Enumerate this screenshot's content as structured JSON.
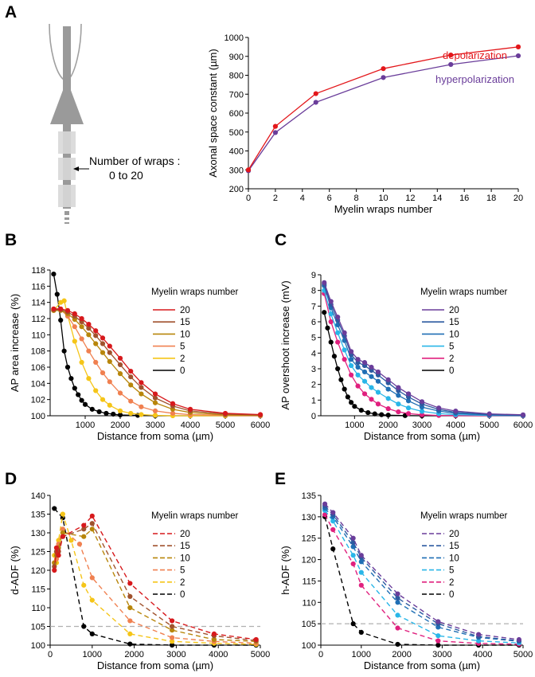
{
  "panel_letters": [
    "A",
    "B",
    "C",
    "D",
    "E"
  ],
  "schematic": {
    "label_line1": "Number of wraps :",
    "label_line2": "0 to 20"
  },
  "colors": {
    "w20": "#d7191c",
    "w15": "#a0522d",
    "w10": "#b8860b",
    "w5": "#f08050",
    "w2": "#f5c518",
    "w0": "#000000",
    "h20": "#6a3d9a",
    "h15": "#2c5aa0",
    "h10": "#1f6fb5",
    "h5": "#29b6e8",
    "h2": "#e0207e",
    "h0": "#000000",
    "depol": "#e3171b",
    "hyper": "#6a3d9a",
    "dash_ref": "#b0b0b0"
  },
  "chart_data": [
    {
      "id": "A",
      "type": "line",
      "title": "",
      "xlabel": "Myelin wraps number",
      "ylabel": "Axonal space constant (µm)",
      "xlim": [
        0,
        20
      ],
      "ylim": [
        200,
        1000
      ],
      "xticks": [
        0,
        2,
        4,
        6,
        8,
        10,
        12,
        14,
        16,
        18,
        20
      ],
      "yticks": [
        200,
        300,
        400,
        500,
        600,
        700,
        800,
        900,
        1000
      ],
      "series": [
        {
          "name": "depolarization",
          "color_key": "depol",
          "x": [
            0,
            2,
            5,
            10,
            15,
            20
          ],
          "y": [
            300,
            530,
            703,
            835,
            907,
            950
          ]
        },
        {
          "name": "hyperpolarization",
          "color_key": "hyper",
          "x": [
            0,
            2,
            5,
            10,
            15,
            20
          ],
          "y": [
            295,
            497,
            657,
            788,
            857,
            903
          ]
        }
      ]
    },
    {
      "id": "B",
      "type": "line",
      "xlabel": "Distance from soma (µm)",
      "ylabel": "AP area increase (%)",
      "xlim": [
        0,
        6000
      ],
      "ylim": [
        100,
        118
      ],
      "xticks": [
        1000,
        2000,
        3000,
        4000,
        5000,
        6000
      ],
      "yticks": [
        100,
        102,
        104,
        106,
        108,
        110,
        112,
        114,
        116,
        118
      ],
      "legend_title": "Myelin wraps number",
      "series": [
        {
          "name": "20",
          "color_key": "w20",
          "x": [
            100,
            300,
            500,
            700,
            900,
            1100,
            1300,
            1500,
            1700,
            2000,
            2300,
            2600,
            3000,
            3500,
            4000,
            5000,
            6000
          ],
          "y": [
            113.2,
            113.2,
            113.0,
            112.6,
            112.0,
            111.3,
            110.5,
            109.6,
            108.6,
            107.1,
            105.5,
            104.1,
            102.7,
            101.5,
            100.8,
            100.3,
            100.15
          ]
        },
        {
          "name": "15",
          "color_key": "w15",
          "x": [
            100,
            300,
            500,
            700,
            900,
            1100,
            1300,
            1500,
            1700,
            2000,
            2300,
            2600,
            3000,
            3500,
            4000,
            5000,
            6000
          ],
          "y": [
            113.1,
            113.1,
            112.8,
            112.3,
            111.6,
            110.8,
            109.9,
            108.9,
            107.8,
            106.3,
            104.8,
            103.5,
            102.2,
            101.2,
            100.6,
            100.2,
            100.1
          ]
        },
        {
          "name": "10",
          "color_key": "w10",
          "x": [
            100,
            300,
            500,
            700,
            900,
            1100,
            1300,
            1500,
            1700,
            2000,
            2300,
            2600,
            3000,
            3500,
            4000,
            5000,
            6000
          ],
          "y": [
            113.0,
            113.0,
            112.6,
            111.9,
            111.0,
            110.0,
            108.9,
            107.8,
            106.7,
            105.2,
            103.8,
            102.7,
            101.6,
            100.8,
            100.4,
            100.1,
            100.05
          ]
        },
        {
          "name": "5",
          "color_key": "w5",
          "x": [
            100,
            300,
            500,
            700,
            900,
            1100,
            1300,
            1500,
            1700,
            2000,
            2300,
            2600,
            3000,
            3500,
            4000,
            5000,
            6000
          ],
          "y": [
            113.0,
            113.1,
            112.3,
            111.0,
            109.5,
            108.0,
            106.6,
            105.3,
            104.2,
            102.8,
            101.8,
            101.1,
            100.6,
            100.3,
            100.15,
            100.05,
            100.0
          ]
        },
        {
          "name": "2",
          "color_key": "w2",
          "x": [
            100,
            300,
            400,
            500,
            700,
            900,
            1100,
            1300,
            1500,
            1700,
            2000,
            2300,
            2600,
            3000,
            3500,
            4000,
            5000,
            6000
          ],
          "y": [
            113.0,
            114.0,
            114.2,
            112.4,
            109.2,
            106.6,
            104.6,
            103.1,
            102.0,
            101.3,
            100.6,
            100.3,
            100.15,
            100.05,
            100.0,
            100.0,
            100.0,
            100.0
          ]
        },
        {
          "name": "0",
          "color_key": "w0",
          "x": [
            100,
            200,
            300,
            400,
            500,
            600,
            700,
            800,
            900,
            1000,
            1200,
            1400,
            1600,
            1800,
            2000,
            2500,
            3000,
            4000,
            5000,
            6000
          ],
          "y": [
            117.5,
            115.0,
            111.8,
            108.0,
            106.0,
            104.6,
            103.4,
            102.6,
            101.9,
            101.4,
            100.8,
            100.5,
            100.3,
            100.2,
            100.1,
            100.05,
            100.0,
            100.0,
            100.0,
            100.0
          ]
        }
      ]
    },
    {
      "id": "C",
      "type": "line",
      "xlabel": "Distance from soma (µm)",
      "ylabel": "AP overshoot increase (mV)",
      "xlim": [
        0,
        6000
      ],
      "ylim": [
        0,
        9
      ],
      "xticks": [
        1000,
        2000,
        3000,
        4000,
        5000,
        6000
      ],
      "yticks": [
        0,
        1,
        2,
        3,
        4,
        5,
        6,
        7,
        8,
        9
      ],
      "legend_title": "Myelin wraps number",
      "series": [
        {
          "name": "20",
          "color_key": "h20",
          "x": [
            100,
            300,
            500,
            700,
            900,
            1100,
            1300,
            1500,
            1700,
            2000,
            2300,
            2600,
            3000,
            3500,
            4000,
            5000,
            6000
          ],
          "y": [
            8.5,
            7.3,
            6.3,
            5.3,
            4.1,
            3.6,
            3.4,
            3.1,
            2.8,
            2.3,
            1.8,
            1.4,
            0.9,
            0.5,
            0.3,
            0.12,
            0.06
          ]
        },
        {
          "name": "15",
          "color_key": "h15",
          "x": [
            100,
            300,
            500,
            700,
            900,
            1100,
            1300,
            1500,
            1700,
            2000,
            2300,
            2600,
            3000,
            3500,
            4000,
            5000,
            6000
          ],
          "y": [
            8.4,
            7.1,
            6.1,
            5.1,
            3.9,
            3.4,
            3.2,
            2.9,
            2.6,
            2.1,
            1.6,
            1.2,
            0.75,
            0.4,
            0.22,
            0.08,
            0.04
          ]
        },
        {
          "name": "10",
          "color_key": "h10",
          "x": [
            100,
            300,
            500,
            700,
            900,
            1100,
            1300,
            1500,
            1700,
            2000,
            2300,
            2600,
            3000,
            3500,
            4000,
            5000,
            6000
          ],
          "y": [
            8.3,
            6.9,
            5.8,
            4.8,
            3.6,
            3.1,
            2.8,
            2.5,
            2.2,
            1.7,
            1.3,
            0.95,
            0.55,
            0.3,
            0.15,
            0.05,
            0.02
          ]
        },
        {
          "name": "5",
          "color_key": "h5",
          "x": [
            100,
            300,
            500,
            700,
            900,
            1100,
            1300,
            1500,
            1700,
            2000,
            2300,
            2600,
            3000,
            3500,
            4000,
            5000,
            6000
          ],
          "y": [
            8.0,
            6.5,
            5.3,
            4.2,
            3.2,
            2.6,
            2.2,
            1.8,
            1.5,
            1.1,
            0.75,
            0.5,
            0.28,
            0.14,
            0.07,
            0.02,
            0.01
          ]
        },
        {
          "name": "2",
          "color_key": "h2",
          "x": [
            100,
            300,
            500,
            700,
            900,
            1100,
            1300,
            1500,
            1700,
            2000,
            2300,
            2600,
            3000,
            3500,
            4000,
            5000,
            6000
          ],
          "y": [
            7.8,
            6.0,
            4.7,
            3.6,
            2.6,
            1.9,
            1.4,
            1.05,
            0.75,
            0.45,
            0.25,
            0.14,
            0.06,
            0.02,
            0.01,
            0.0,
            0.0
          ]
        },
        {
          "name": "0",
          "color_key": "h0",
          "x": [
            100,
            200,
            300,
            400,
            500,
            600,
            700,
            800,
            900,
            1000,
            1200,
            1400,
            1600,
            1800,
            2000,
            2500,
            3000,
            4000,
            5000,
            6000
          ],
          "y": [
            6.6,
            5.6,
            4.7,
            3.8,
            3.0,
            2.3,
            1.7,
            1.2,
            0.85,
            0.6,
            0.35,
            0.2,
            0.12,
            0.07,
            0.04,
            0.01,
            0.0,
            0.0,
            0.0,
            0.0
          ]
        }
      ]
    },
    {
      "id": "D",
      "type": "line",
      "xlabel": "Distance from soma (µm)",
      "ylabel": "d-ADF (%)",
      "xlim": [
        0,
        5000
      ],
      "ylim": [
        100,
        140
      ],
      "xticks": [
        0,
        1000,
        2000,
        3000,
        4000,
        5000
      ],
      "yticks": [
        100,
        105,
        110,
        115,
        120,
        125,
        130,
        135,
        140
      ],
      "reference_line": 105,
      "legend_title": "Myelin wraps number",
      "series": [
        {
          "name": "20",
          "color_key": "w20",
          "x": [
            100,
            150,
            200,
            300,
            800,
            1000,
            1900,
            2900,
            3900,
            4900
          ],
          "y": [
            120,
            126,
            124,
            129,
            132,
            134.5,
            116.5,
            106.5,
            103,
            101.5
          ]
        },
        {
          "name": "15",
          "color_key": "w15",
          "x": [
            100,
            150,
            200,
            300,
            800,
            1000,
            1900,
            2900,
            3900,
            4900
          ],
          "y": [
            121,
            125,
            125,
            129,
            131,
            132.5,
            113,
            105,
            102.5,
            101.2
          ]
        },
        {
          "name": "10",
          "color_key": "w10",
          "x": [
            100,
            150,
            200,
            300,
            800,
            1000,
            1900,
            2900,
            3900,
            4900
          ],
          "y": [
            122,
            124,
            126,
            130,
            129,
            131,
            110,
            104,
            101.5,
            101
          ]
        },
        {
          "name": "5",
          "color_key": "w5",
          "x": [
            100,
            150,
            200,
            300,
            700,
            1000,
            1900,
            2900,
            3900,
            4900
          ],
          "y": [
            122,
            123,
            127,
            131,
            127,
            118,
            106.5,
            102,
            101,
            100.5
          ]
        },
        {
          "name": "2",
          "color_key": "w2",
          "x": [
            100,
            150,
            200,
            300,
            500,
            800,
            1000,
            1900,
            2900,
            3900,
            4900
          ],
          "y": [
            124,
            122,
            128,
            135,
            128,
            116,
            112,
            103,
            101,
            100.5,
            100.2
          ]
        },
        {
          "name": "0",
          "color_key": "w0",
          "x": [
            100,
            300,
            800,
            1000,
            1900,
            2900,
            3900,
            4900
          ],
          "y": [
            136.5,
            134,
            105,
            103,
            100.3,
            100,
            100,
            100
          ]
        }
      ]
    },
    {
      "id": "E",
      "type": "line",
      "xlabel": "Distance from soma (µm)",
      "ylabel": "h-ADF (%)",
      "xlim": [
        0,
        5000
      ],
      "ylim": [
        100,
        135
      ],
      "xticks": [
        0,
        1000,
        2000,
        3000,
        4000,
        5000
      ],
      "yticks": [
        100,
        105,
        110,
        115,
        120,
        125,
        130,
        135
      ],
      "reference_line": 105,
      "legend_title": "Myelin wraps number",
      "series": [
        {
          "name": "20",
          "color_key": "h20",
          "x": [
            100,
            300,
            800,
            1000,
            1900,
            2900,
            3900,
            4900
          ],
          "y": [
            133,
            131,
            125,
            121,
            112,
            105.5,
            102.5,
            101.3
          ]
        },
        {
          "name": "15",
          "color_key": "h15",
          "x": [
            100,
            300,
            800,
            1000,
            1900,
            2900,
            3900,
            4900
          ],
          "y": [
            132.5,
            130.5,
            124,
            120.5,
            111,
            105,
            102,
            101
          ]
        },
        {
          "name": "10",
          "color_key": "h10",
          "x": [
            100,
            300,
            800,
            1000,
            1900,
            2900,
            3900,
            4900
          ],
          "y": [
            132,
            130,
            123,
            119.5,
            110,
            104.2,
            101.8,
            100.9
          ]
        },
        {
          "name": "5",
          "color_key": "h5",
          "x": [
            100,
            300,
            800,
            1000,
            1900,
            2900,
            3900,
            4900
          ],
          "y": [
            131.5,
            129,
            121,
            117,
            107,
            102.2,
            101,
            100.5
          ]
        },
        {
          "name": "2",
          "color_key": "h2",
          "x": [
            100,
            300,
            800,
            1000,
            1900,
            2900,
            3900,
            4900
          ],
          "y": [
            130.5,
            127,
            119,
            114,
            104,
            101,
            100.4,
            100.2
          ]
        },
        {
          "name": "0",
          "color_key": "h0",
          "x": [
            100,
            300,
            800,
            1000,
            1900,
            2900,
            3900,
            4900
          ],
          "y": [
            130,
            122.5,
            105,
            103,
            100.2,
            100,
            100,
            100
          ]
        }
      ]
    }
  ]
}
